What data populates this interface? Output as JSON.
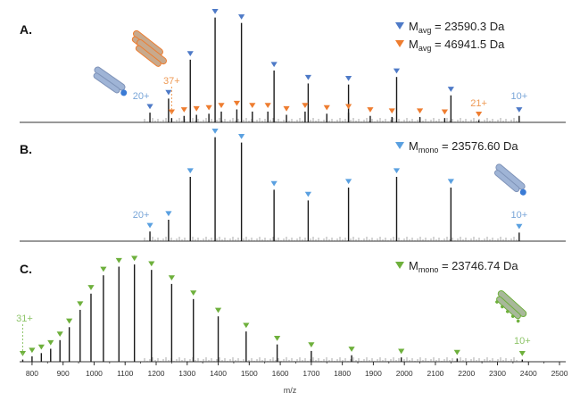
{
  "figure": {
    "xaxis_label": "m/z",
    "xticks": [
      800,
      900,
      1000,
      1100,
      1200,
      1300,
      1400,
      1500,
      1600,
      1700,
      1800,
      1900,
      2000,
      2100,
      2200,
      2300,
      2400,
      2500
    ],
    "colors": {
      "blue": "#4e7ac7",
      "light_blue": "#5aa0e0",
      "orange": "#ee7d30",
      "green": "#6eb03c",
      "peak": "#1a1a1a",
      "axis": "#333333",
      "charge_blue": "#7aa6d8",
      "charge_orange": "#ee9a55",
      "charge_green": "#8fc56a"
    },
    "icons": [
      "antibody-fragment-icon",
      "dimer-icon",
      "labeled-fragment-icon"
    ]
  },
  "chart_data": [
    {
      "type": "bar",
      "panel_label": "A.",
      "xlim": [
        760,
        2520
      ],
      "legend": [
        {
          "marker": "blue-triangle",
          "text_main": "M",
          "text_sub": "avg",
          "text_rest": " = 23590.3 Da"
        },
        {
          "marker": "orange-triangle",
          "text_main": "M",
          "text_sub": "avg",
          "text_rest": " = 46941.5 Da"
        }
      ],
      "series": [
        {
          "marker_color": "blue",
          "x": [
            1180,
            1240,
            1310,
            1390,
            1475,
            1580,
            1690,
            1820,
            1975,
            2150,
            2370
          ],
          "y": [
            0.09,
            0.22,
            0.58,
            0.97,
            0.92,
            0.48,
            0.36,
            0.35,
            0.42,
            0.25,
            0.06
          ]
        },
        {
          "marker_color": "orange",
          "x": [
            1250,
            1290,
            1330,
            1370,
            1410,
            1460,
            1510,
            1560,
            1620,
            1680,
            1750,
            1820,
            1890,
            1960,
            2050,
            2130,
            2240
          ],
          "y": [
            0.04,
            0.06,
            0.07,
            0.08,
            0.1,
            0.12,
            0.1,
            0.1,
            0.07,
            0.1,
            0.08,
            0.09,
            0.06,
            0.05,
            0.05,
            0.04,
            0.02
          ]
        }
      ],
      "charge_labels": [
        {
          "text": "20+",
          "color": "blue",
          "x": 1180
        },
        {
          "text": "37+",
          "color": "orange",
          "x": 1250
        },
        {
          "text": "21+",
          "color": "orange",
          "x": 2240
        },
        {
          "text": "10+",
          "color": "blue",
          "x": 2370
        }
      ]
    },
    {
      "type": "bar",
      "panel_label": "B.",
      "xlim": [
        760,
        2520
      ],
      "legend": [
        {
          "marker": "light-blue-triangle",
          "text_main": "M",
          "text_sub": "mono",
          "text_rest": " = 23576.60 Da"
        }
      ],
      "series": [
        {
          "marker_color": "light_blue",
          "x": [
            1180,
            1240,
            1310,
            1390,
            1475,
            1580,
            1690,
            1820,
            1975,
            2150,
            2370
          ],
          "y": [
            0.09,
            0.2,
            0.6,
            0.97,
            0.92,
            0.48,
            0.38,
            0.5,
            0.6,
            0.5,
            0.08
          ]
        }
      ],
      "charge_labels": [
        {
          "text": "20+",
          "color": "light_blue",
          "x": 1180
        },
        {
          "text": "10+",
          "color": "light_blue",
          "x": 2370
        }
      ]
    },
    {
      "type": "bar",
      "panel_label": "C.",
      "xlim": [
        760,
        2520
      ],
      "legend": [
        {
          "marker": "green-triangle",
          "text_main": "M",
          "text_sub": "mono",
          "text_rest": " = 23746.74 Da"
        }
      ],
      "series": [
        {
          "marker_color": "green",
          "x": [
            770,
            800,
            830,
            860,
            890,
            920,
            955,
            990,
            1030,
            1080,
            1130,
            1185,
            1250,
            1320,
            1400,
            1490,
            1590,
            1700,
            1830,
            1990,
            2170,
            2380
          ],
          "y": [
            0.02,
            0.05,
            0.08,
            0.12,
            0.2,
            0.32,
            0.48,
            0.63,
            0.8,
            0.88,
            0.9,
            0.85,
            0.72,
            0.58,
            0.42,
            0.28,
            0.16,
            0.1,
            0.06,
            0.04,
            0.03,
            0.02
          ]
        }
      ],
      "charge_labels": [
        {
          "text": "31+",
          "color": "green",
          "x": 770
        },
        {
          "text": "10+",
          "color": "green",
          "x": 2380
        }
      ]
    }
  ]
}
